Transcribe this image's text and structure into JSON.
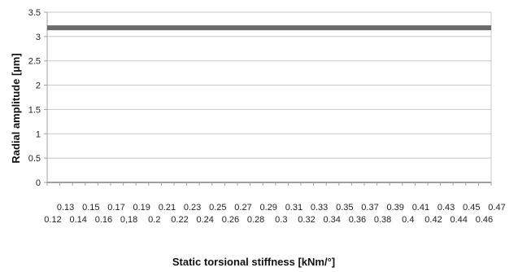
{
  "chart_data": {
    "type": "line",
    "title": "",
    "xlabel": "Static torsional stiffness [kNm/°]",
    "ylabel": "Radial amplitude [µm]",
    "ylim": [
      0,
      3.5
    ],
    "yticks": [
      "0",
      "0.5",
      "1",
      "1.5",
      "2",
      "2.5",
      "3",
      "3.5"
    ],
    "x": [
      "0.12",
      "0.13",
      "0.14",
      "0.15",
      "0.16",
      "0.17",
      "0,18",
      "0.19",
      "0.2",
      "0.21",
      "0.22",
      "0.23",
      "0.24",
      "0.25",
      "0.26",
      "0.27",
      "0.28",
      "0.29",
      "0.3",
      "0.31",
      "0.32",
      "0.33",
      "0.34",
      "0.35",
      "0.36",
      "0.37",
      "0.38",
      "0.39",
      "0.4",
      "0.41",
      "0.42",
      "0.43",
      "0.44",
      "0.45",
      "0.46",
      "0.47"
    ],
    "series": [
      {
        "values": [
          3.18,
          3.18,
          3.18,
          3.18,
          3.18,
          3.18,
          3.18,
          3.18,
          3.18,
          3.18,
          3.18,
          3.18,
          3.18,
          3.18,
          3.18,
          3.18,
          3.18,
          3.18,
          3.18,
          3.18,
          3.18,
          3.18,
          3.18,
          3.18,
          3.18,
          3.18,
          3.18,
          3.18,
          3.18,
          3.18,
          3.18,
          3.18,
          3.18,
          3.18,
          3.18,
          3.18
        ],
        "color": "#6b6b6b"
      }
    ],
    "grid": true,
    "grid_color": "#c8c8c8",
    "axis_color": "#a0a0a0",
    "legend": "none"
  }
}
